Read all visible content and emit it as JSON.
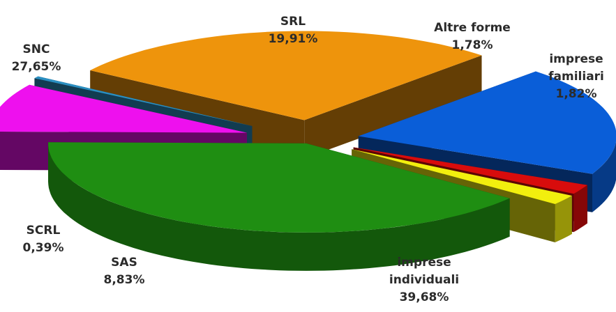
{
  "chart_data": {
    "type": "pie",
    "style": "3d-exploded",
    "title": "",
    "legend": "none",
    "slices": [
      {
        "name": "imprese individuali",
        "lines": [
          "imprese",
          "individuali"
        ],
        "pct_label": "39,68%",
        "value": 39.68,
        "color": "#1f8e12"
      },
      {
        "name": "SAS",
        "lines": [
          "SAS"
        ],
        "pct_label": "8,83%",
        "value": 8.83,
        "color": "#ee10ee"
      },
      {
        "name": "SCRL",
        "lines": [
          "SCRL"
        ],
        "pct_label": "0,39%",
        "value": 0.39,
        "color": "#2a8fc2"
      },
      {
        "name": "SNC",
        "lines": [
          "SNC"
        ],
        "pct_label": "27,65%",
        "value": 27.65,
        "color": "#ee940c"
      },
      {
        "name": "SRL",
        "lines": [
          "SRL"
        ],
        "pct_label": "19,91%",
        "value": 19.91,
        "color": "#0a5ed8"
      },
      {
        "name": "Altre forme",
        "lines": [
          "Altre forme"
        ],
        "pct_label": "1,78%",
        "value": 1.78,
        "color": "#d80c0c"
      },
      {
        "name": "imprese familiari",
        "lines": [
          "imprese",
          "familiari"
        ],
        "pct_label": "1,82%",
        "value": 1.82,
        "color": "#f2ef0e"
      }
    ]
  }
}
